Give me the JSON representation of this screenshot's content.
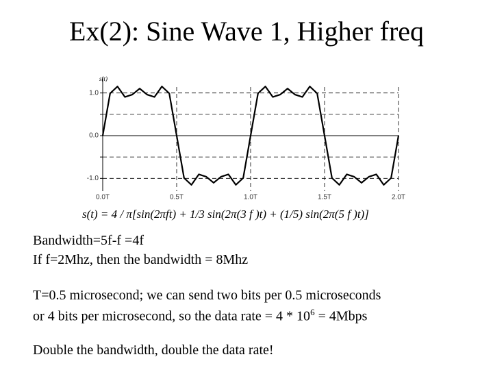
{
  "title": "Ex(2): Sine Wave 1, Higher freq",
  "chart_data": {
    "type": "line",
    "y_label": "s(t)",
    "formula": "s(t) = 4 / π[sin(2πft) + 1/3 sin(2π(3 f )t) + (1/5) sin(2π(5 f )t)]",
    "x": [
      0,
      0.05,
      0.1,
      0.15,
      0.2,
      0.25,
      0.3,
      0.35,
      0.4,
      0.45,
      0.5,
      0.55,
      0.6,
      0.65,
      0.7,
      0.75,
      0.8,
      0.85,
      0.9,
      0.95,
      1,
      1.05,
      1.1,
      1.15,
      1.2,
      1.25,
      1.3,
      1.35,
      1.4,
      1.45,
      1.5,
      1.55,
      1.6,
      1.65,
      1.7,
      1.75,
      1.8,
      1.85,
      1.9,
      1.95,
      2
    ],
    "series": [
      {
        "color": "#000000",
        "values": [
          0,
          0.991,
          1.152,
          0.906,
          0.962,
          1.103,
          0.962,
          0.906,
          1.152,
          0.991,
          0,
          -0.991,
          -1.152,
          -0.906,
          -0.962,
          -1.103,
          -0.962,
          -0.906,
          -1.152,
          -0.991,
          0,
          0.991,
          1.152,
          0.906,
          0.962,
          1.103,
          0.962,
          0.906,
          1.152,
          0.991,
          0,
          -0.991,
          -1.152,
          -0.906,
          -0.962,
          -1.103,
          -0.962,
          -0.906,
          -1.152,
          -0.991,
          0
        ]
      }
    ],
    "xlim": [
      0,
      2
    ],
    "xticks": [
      {
        "value": 0,
        "label": "0.0T"
      },
      {
        "value": 0.5,
        "label": "0.5T"
      },
      {
        "value": 1,
        "label": "1.0T"
      },
      {
        "value": 1.5,
        "label": "1.5T"
      },
      {
        "value": 2,
        "label": "2.0T"
      }
    ],
    "ylim": [
      -1.3,
      1.3
    ],
    "yticks": [
      {
        "value": 1,
        "label": "1.0"
      },
      {
        "value": 0,
        "label": "0.0"
      },
      {
        "value": -1,
        "label": "-1.0"
      }
    ],
    "minor_yticks": [
      0.5,
      -0.5
    ],
    "grid": true
  },
  "body": {
    "lines": [
      {
        "text": "Bandwidth=5f-f =4f"
      },
      {
        "text": "If f=2Mhz, then the bandwidth = 8Mhz"
      },
      {
        "text": "T=0.5 microsecond; we can send two bits per 0.5 microseconds"
      },
      {
        "text": "or 4 bits per microsecond, so the data rate = 4 * 10",
        "sup": "6",
        "tail": " = 4Mbps"
      },
      {
        "text": "Double the bandwidth, double the data rate!"
      }
    ]
  }
}
